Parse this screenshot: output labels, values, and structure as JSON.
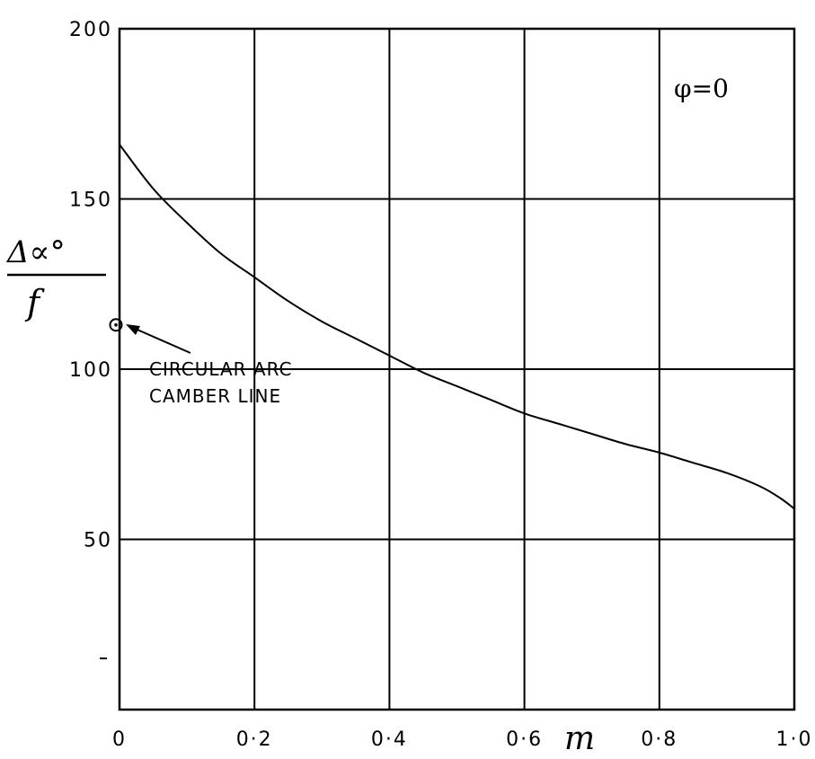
{
  "chart_data": {
    "type": "line",
    "xlabel": "m",
    "ylabel": {
      "numerator": "Δ∝°",
      "denominator": "f"
    },
    "xlim": [
      0,
      1.0
    ],
    "ylim": [
      0,
      200
    ],
    "x_ticks": [
      0,
      0.2,
      0.4,
      0.6,
      0.8,
      1.0
    ],
    "x_tick_labels": [
      "0",
      "0·2",
      "0·4",
      "0·6",
      "0·8",
      "1·0"
    ],
    "y_ticks": [
      50,
      100,
      150,
      200
    ],
    "y_tick_labels": [
      "50",
      "100",
      "150",
      "200"
    ],
    "grid": true,
    "annotations": {
      "condition": "φ=0",
      "point_label_line1": "CIRCULAR ARC",
      "point_label_line2": "CAMBER LINE"
    },
    "series": [
      {
        "x": [
          0,
          0.05,
          0.1,
          0.15,
          0.2,
          0.25,
          0.3,
          0.35,
          0.4,
          0.45,
          0.5,
          0.55,
          0.6,
          0.65,
          0.7,
          0.75,
          0.8,
          0.85,
          0.9,
          0.95,
          0.98,
          1.0
        ],
        "y": [
          166,
          153,
          143,
          134,
          127,
          120,
          114,
          109,
          104,
          99,
          95,
          91,
          87,
          84,
          81,
          78,
          75.5,
          72.5,
          69.5,
          65.5,
          62,
          59
        ]
      }
    ],
    "marked_point": {
      "x": 0,
      "y": 113
    }
  }
}
